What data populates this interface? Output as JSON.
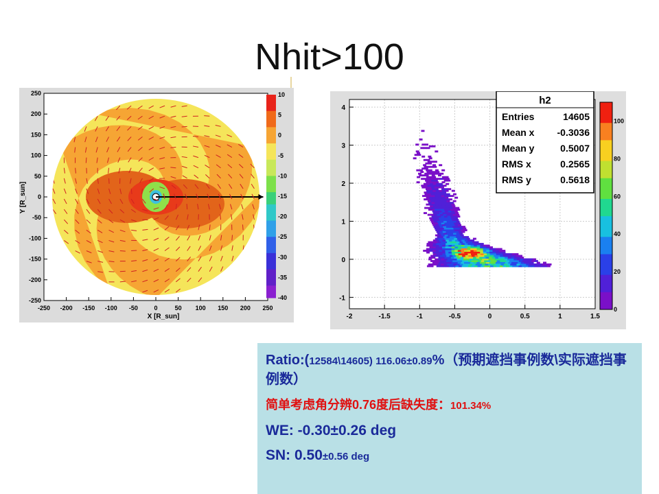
{
  "slide": {
    "title": "Nhit>100"
  },
  "chart_data": [
    {
      "type": "heatmap",
      "title": "",
      "xlabel": "X [R_sun]",
      "ylabel": "Y [R_sun]",
      "xlim": [
        -250,
        250
      ],
      "ylim": [
        -250,
        250
      ],
      "xticks": [
        -250,
        -200,
        -150,
        -100,
        -50,
        0,
        50,
        100,
        150,
        200,
        250
      ],
      "yticks": [
        250,
        200,
        150,
        100,
        50,
        0,
        -50,
        -100,
        -150,
        -200,
        -250
      ],
      "colorbar": {
        "range": [
          -40,
          10
        ],
        "ticks": [
          10,
          5,
          0,
          -5,
          -10,
          -15,
          -20,
          -25,
          -30,
          -35,
          -40
        ]
      },
      "annotations": [
        "disk radius ~250 R_sun",
        "arrow from origin to x~240"
      ]
    },
    {
      "type": "heatmap",
      "title": "h2",
      "xlim": [
        -2,
        1.5
      ],
      "ylim": [
        -1.3,
        4.2
      ],
      "xticks": [
        "-2",
        "-1.5",
        "-1",
        "-0.5",
        "0",
        "0.5",
        "1",
        "1.5"
      ],
      "yticks": [
        "4",
        "3",
        "2",
        "1",
        "0",
        "-1"
      ],
      "colorbar": {
        "range": [
          0,
          110
        ],
        "ticks": [
          "100",
          "80",
          "60",
          "40",
          "20",
          "0"
        ]
      },
      "stats": [
        {
          "label": "Entries",
          "value": "14605"
        },
        {
          "label": "Mean x",
          "value": "-0.3036"
        },
        {
          "label": "Mean y",
          "value": "0.5007"
        },
        {
          "label": "RMS x",
          "value": "0.2565"
        },
        {
          "label": "RMS y",
          "value": "0.5618"
        }
      ],
      "peak": {
        "x": -0.3,
        "y": 0.15
      }
    }
  ],
  "info": {
    "line1_a": "Ratio:(",
    "line1_b": "12584\\14605) 116.06±0.89",
    "line1_c": "%（预期遮挡事例数\\实际遮挡事例数）",
    "line2_a": "简单考虑角分辨",
    "line2_b": "0.76",
    "line2_c": "度后缺失度：",
    "line2_d": "101.34%",
    "line3": "WE: -0.30±0.26 deg",
    "line4_a": "SN: 0.50",
    "line4_b": "±0.56 deg"
  },
  "colors": {
    "title": "#111111",
    "info_bg": "#b9e0e6",
    "blue_text": "#1a2a9a",
    "red_text": "#e01010"
  }
}
